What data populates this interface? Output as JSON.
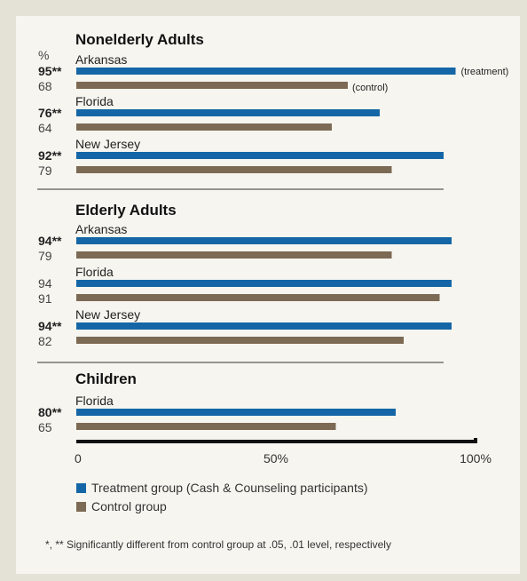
{
  "colors": {
    "treatment": "#1566a6",
    "control": "#7c6a55",
    "axis": "#111111",
    "separator": "#333333"
  },
  "chart_data": {
    "type": "bar",
    "orientation": "horizontal",
    "unit_label": "%",
    "xlim": [
      0,
      100
    ],
    "x_ticks": [
      "0",
      "50%",
      "100%"
    ],
    "grid": false,
    "legend_placement": "bottom-left",
    "groups": [
      {
        "title": "Nonelderly Adults",
        "rows": [
          {
            "label": "Arkansas",
            "treatment": 95,
            "treatment_label": "95**",
            "control": 68,
            "control_label": "68",
            "treatment_note": "(treatment)",
            "control_note": "(control)"
          },
          {
            "label": "Florida",
            "treatment": 76,
            "treatment_label": "76**",
            "control": 64,
            "control_label": "64"
          },
          {
            "label": "New Jersey",
            "treatment": 92,
            "treatment_label": "92**",
            "control": 79,
            "control_label": "79"
          }
        ]
      },
      {
        "title": "Elderly Adults",
        "rows": [
          {
            "label": "Arkansas",
            "treatment": 94,
            "treatment_label": "94**",
            "control": 79,
            "control_label": "79"
          },
          {
            "label": "Florida",
            "treatment": 94,
            "treatment_label": "94",
            "control": 91,
            "control_label": "91"
          },
          {
            "label": "New Jersey",
            "treatment": 94,
            "treatment_label": "94**",
            "control": 82,
            "control_label": "82"
          }
        ]
      },
      {
        "title": "Children",
        "rows": [
          {
            "label": "Florida",
            "treatment": 80,
            "treatment_label": "80**",
            "control": 65,
            "control_label": "65"
          }
        ]
      }
    ],
    "legend": [
      {
        "key": "treatment",
        "label": "Treatment group (Cash & Counseling participants)"
      },
      {
        "key": "control",
        "label": "Control group"
      }
    ],
    "footnote": "*, ** Significantly different from control group at .05, .01 level, respectively"
  }
}
